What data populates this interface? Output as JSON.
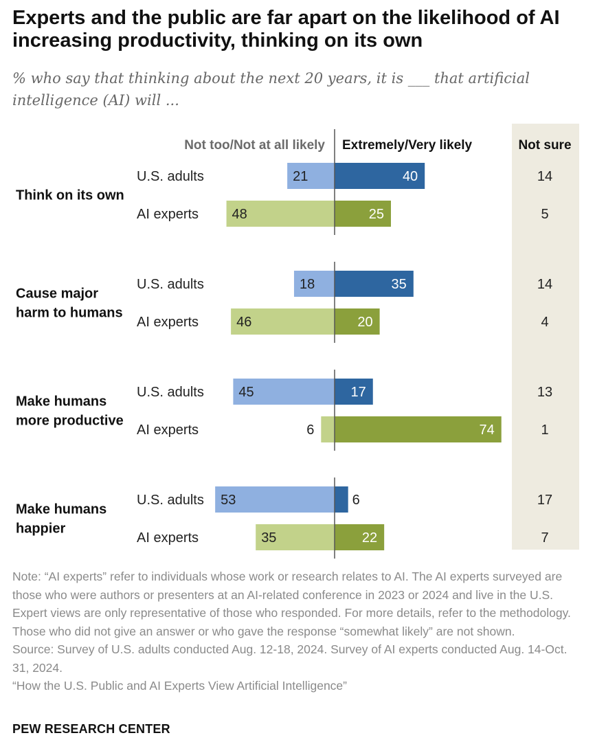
{
  "title": "Experts and the public are far apart on the likelihood of AI increasing productivity, thinking on its own",
  "subtitle": "% who say that thinking about the next 20 years, it is ___ that artificial intelligence (AI) will ...",
  "colors": {
    "adults_unlikely": "#8fb0e0",
    "adults_likely": "#2e66a0",
    "experts_unlikely": "#c2d28a",
    "experts_likely": "#8ba03c",
    "not_sure_bg": "#eeebe0",
    "axis_line": "#555555"
  },
  "chart_data": {
    "type": "diverging-bar",
    "column_headers": {
      "unlikely": "Not too/Not at all likely",
      "likely": "Extremely/Very likely",
      "not_sure": "Not sure"
    },
    "series_names": [
      "U.S. adults",
      "AI experts"
    ],
    "groups": [
      {
        "label_lines": [
          "Think on its own"
        ],
        "rows": [
          {
            "name": "U.S. adults",
            "unlikely": 21,
            "likely": 40,
            "not_sure": 14
          },
          {
            "name": "AI experts",
            "unlikely": 48,
            "likely": 25,
            "not_sure": 5
          }
        ]
      },
      {
        "label_lines": [
          "Cause major",
          "harm to humans"
        ],
        "rows": [
          {
            "name": "U.S. adults",
            "unlikely": 18,
            "likely": 35,
            "not_sure": 14
          },
          {
            "name": "AI experts",
            "unlikely": 46,
            "likely": 20,
            "not_sure": 4
          }
        ]
      },
      {
        "label_lines": [
          "Make humans",
          "more productive"
        ],
        "rows": [
          {
            "name": "U.S. adults",
            "unlikely": 45,
            "likely": 17,
            "not_sure": 13
          },
          {
            "name": "AI experts",
            "unlikely": 6,
            "likely": 74,
            "not_sure": 1
          }
        ]
      },
      {
        "label_lines": [
          "Make humans",
          "happier"
        ],
        "rows": [
          {
            "name": "U.S. adults",
            "unlikely": 53,
            "likely": 6,
            "not_sure": 17
          },
          {
            "name": "AI experts",
            "unlikely": 35,
            "likely": 22,
            "not_sure": 7
          }
        ]
      }
    ]
  },
  "notes": {
    "note": "Note: “AI experts” refer to individuals whose work or research relates to AI. The AI experts surveyed are those who were authors or presenters at an AI-related conference in 2023 or 2024 and live in the U.S. Expert views are only representative of those who responded. For more details, refer to the methodology. Those who did not give an answer or who gave the response “somewhat likely” are not shown.",
    "source": "Source: Survey of U.S. adults conducted Aug. 12-18, 2024. Survey of AI experts conducted Aug. 14-Oct. 31, 2024.",
    "report": "“How the U.S. Public and AI Experts View Artificial Intelligence”"
  },
  "brand": "PEW RESEARCH CENTER"
}
